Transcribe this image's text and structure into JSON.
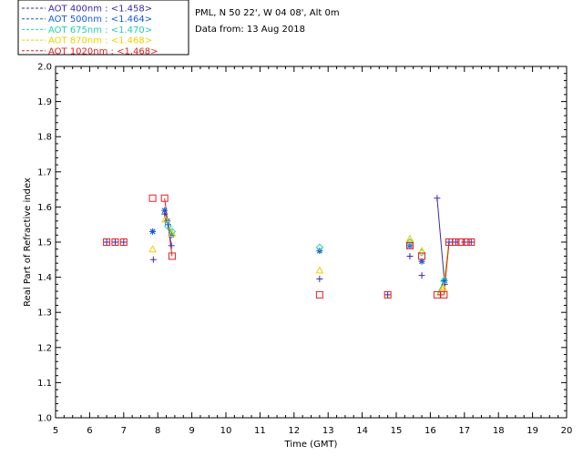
{
  "chart_data": {
    "type": "scatter",
    "title": "",
    "xlabel": "Time (GMT)",
    "ylabel": "Real Part of Refractive index",
    "xlim": [
      5,
      20
    ],
    "ylim": [
      1.0,
      2.0
    ],
    "xticks": [
      5,
      6,
      7,
      8,
      9,
      10,
      11,
      12,
      13,
      14,
      15,
      16,
      17,
      18,
      19,
      20
    ],
    "xtick_labels": [
      "5",
      "6",
      "7",
      "8",
      "9",
      "10",
      "11",
      "12",
      "13",
      "14",
      "15",
      "16",
      "17",
      "18",
      "19",
      "20"
    ],
    "yticks": [
      1.0,
      1.1,
      1.2,
      1.3,
      1.4,
      1.5,
      1.6,
      1.7,
      1.8,
      1.9,
      2.0
    ],
    "ytick_labels": [
      "1.0",
      "1.1",
      "1.2",
      "1.3",
      "1.4",
      "1.5",
      "1.6",
      "1.7",
      "1.8",
      "1.9",
      "2.0"
    ],
    "grid": false,
    "info_lines": [
      "PML, N 50 22', W 04 08', Alt 0m",
      "Data from: 13 Aug 2018"
    ],
    "series": [
      {
        "name": "AOT 400nm : <1.458>",
        "color": "#3a2aa8",
        "marker": "plus",
        "points": [
          [
            6.5,
            1.5
          ],
          [
            6.75,
            1.5
          ],
          [
            7.0,
            1.5
          ],
          [
            7.87,
            1.45
          ],
          [
            8.2,
            1.58
          ],
          [
            8.3,
            1.55
          ],
          [
            8.4,
            1.49
          ],
          [
            12.75,
            1.395
          ],
          [
            14.75,
            1.35
          ],
          [
            15.4,
            1.46
          ],
          [
            15.75,
            1.405
          ],
          [
            16.2,
            1.625
          ],
          [
            16.42,
            1.38
          ],
          [
            16.55,
            1.5
          ],
          [
            16.75,
            1.5
          ],
          [
            17.0,
            1.5
          ],
          [
            17.2,
            1.5
          ]
        ],
        "line_segments": [
          [
            [
              8.2,
              1.58
            ],
            [
              8.3,
              1.55
            ],
            [
              8.4,
              1.49
            ]
          ],
          [
            [
              16.2,
              1.625
            ],
            [
              16.42,
              1.38
            ],
            [
              16.55,
              1.5
            ]
          ]
        ]
      },
      {
        "name": "AOT 500nm : <1.464>",
        "color": "#1a5ad0",
        "marker": "asterisk",
        "points": [
          [
            7.85,
            1.53
          ],
          [
            8.2,
            1.59
          ],
          [
            8.28,
            1.56
          ],
          [
            8.4,
            1.52
          ],
          [
            12.75,
            1.475
          ],
          [
            15.4,
            1.49
          ],
          [
            15.75,
            1.445
          ],
          [
            16.42,
            1.39
          ]
        ],
        "line_segments": [
          [
            [
              8.2,
              1.59
            ],
            [
              8.28,
              1.56
            ],
            [
              8.4,
              1.52
            ]
          ],
          [
            [
              16.2,
              1.35
            ],
            [
              16.42,
              1.39
            ],
            [
              16.55,
              1.5
            ]
          ]
        ]
      },
      {
        "name": "AOT 675nm : <1.470>",
        "color": "#20d0b0",
        "marker": "diamond",
        "points": [
          [
            8.3,
            1.545
          ],
          [
            8.42,
            1.53
          ],
          [
            12.75,
            1.485
          ],
          [
            15.4,
            1.5
          ],
          [
            15.75,
            1.47
          ],
          [
            16.4,
            1.39
          ]
        ],
        "line_segments": [
          [
            [
              8.3,
              1.545
            ],
            [
              8.42,
              1.53
            ]
          ],
          [
            [
              16.2,
              1.35
            ],
            [
              16.4,
              1.39
            ],
            [
              16.55,
              1.5
            ]
          ]
        ]
      },
      {
        "name": "AOT 870nm : <1.468>",
        "color": "#f0d000",
        "marker": "triangle",
        "points": [
          [
            7.85,
            1.48
          ],
          [
            8.22,
            1.565
          ],
          [
            8.42,
            1.525
          ],
          [
            12.75,
            1.42
          ],
          [
            15.4,
            1.51
          ],
          [
            15.75,
            1.475
          ],
          [
            16.38,
            1.37
          ]
        ],
        "line_segments": [
          [
            [
              8.22,
              1.565
            ],
            [
              8.42,
              1.525
            ]
          ],
          [
            [
              16.2,
              1.35
            ],
            [
              16.38,
              1.37
            ],
            [
              16.55,
              1.5
            ]
          ]
        ]
      },
      {
        "name": "AOT 1020nm : <1.468>",
        "color": "#e02020",
        "marker": "square",
        "points": [
          [
            6.5,
            1.5
          ],
          [
            6.75,
            1.5
          ],
          [
            7.0,
            1.5
          ],
          [
            7.85,
            1.625
          ],
          [
            8.2,
            1.625
          ],
          [
            8.42,
            1.46
          ],
          [
            12.75,
            1.35
          ],
          [
            14.75,
            1.35
          ],
          [
            15.4,
            1.49
          ],
          [
            15.75,
            1.46
          ],
          [
            16.2,
            1.35
          ],
          [
            16.4,
            1.35
          ],
          [
            16.55,
            1.5
          ],
          [
            16.75,
            1.5
          ],
          [
            16.9,
            1.5
          ],
          [
            17.05,
            1.5
          ],
          [
            17.2,
            1.5
          ]
        ],
        "line_segments": [
          [
            [
              8.2,
              1.625
            ],
            [
              8.42,
              1.46
            ]
          ],
          [
            [
              16.2,
              1.35
            ],
            [
              16.4,
              1.35
            ],
            [
              16.55,
              1.5
            ]
          ]
        ]
      }
    ]
  }
}
